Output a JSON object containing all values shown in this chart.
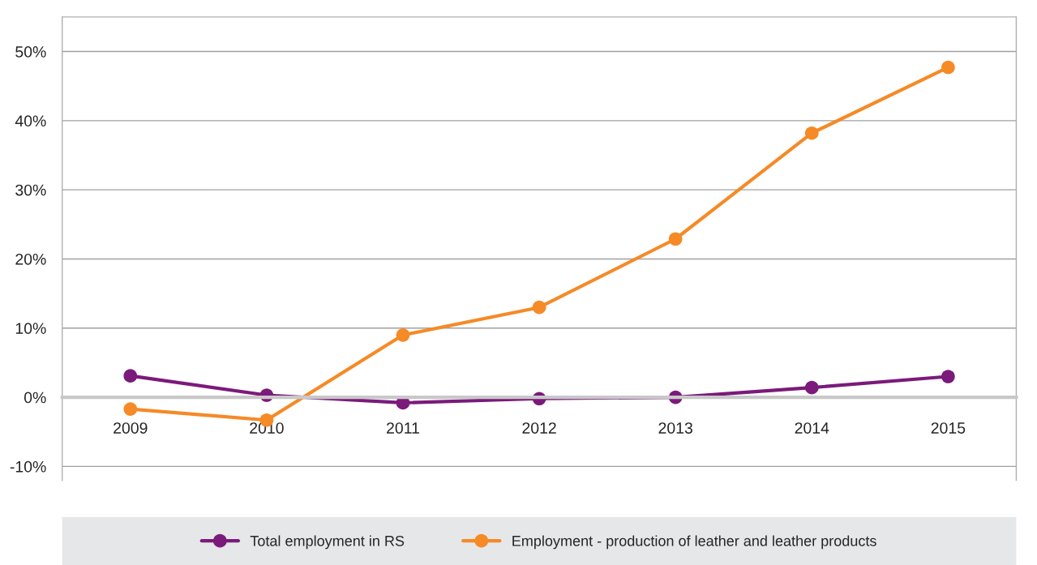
{
  "chart_data": {
    "type": "line",
    "categories": [
      "2009",
      "2010",
      "2011",
      "2012",
      "2013",
      "2014",
      "2015"
    ],
    "series": [
      {
        "name": "Total employment in RS",
        "color": "#7b1a7b",
        "values": [
          3.1,
          0.3,
          -0.8,
          -0.2,
          0.0,
          1.4,
          3.0
        ]
      },
      {
        "name": "Employment - production of leather and leather products",
        "color": "#f58a27",
        "values": [
          -1.7,
          -3.3,
          9.0,
          13.0,
          22.9,
          38.2,
          47.7
        ]
      }
    ],
    "ylim": [
      -12,
      55
    ],
    "yticks": [
      {
        "value": -10,
        "label": "-10%"
      },
      {
        "value": 0,
        "label": "0%"
      },
      {
        "value": 10,
        "label": "10%"
      },
      {
        "value": 20,
        "label": "20%"
      },
      {
        "value": 30,
        "label": "30%"
      },
      {
        "value": 40,
        "label": "40%"
      },
      {
        "value": 50,
        "label": "50%"
      }
    ],
    "grid": "y",
    "legend": "bottom",
    "marker": "circle",
    "line_style": "solid"
  }
}
